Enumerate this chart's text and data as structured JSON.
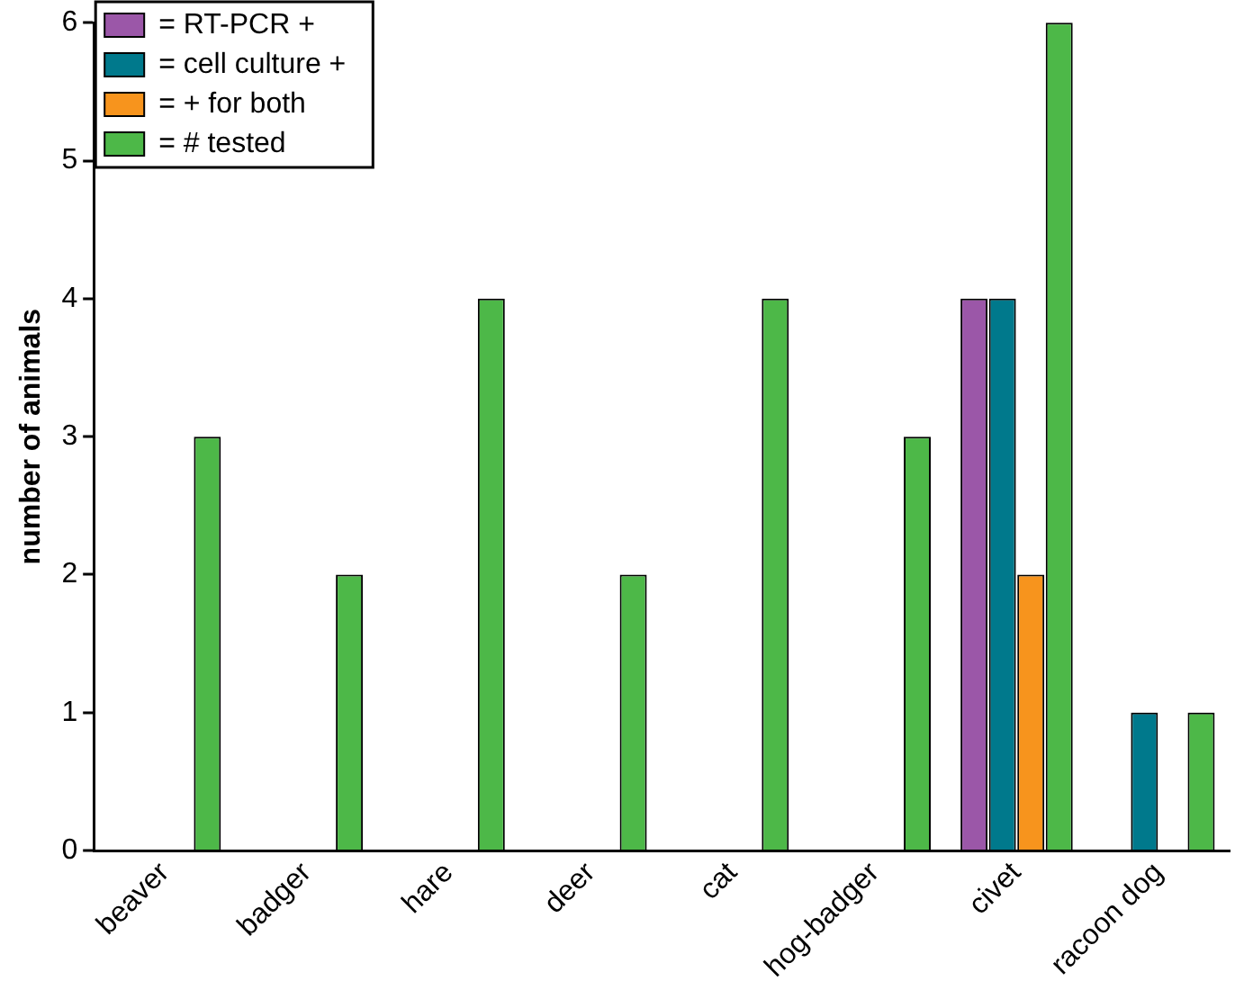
{
  "chart_data": {
    "type": "bar",
    "ylabel": "number of animals",
    "categories": [
      "beaver",
      "badger",
      "hare",
      "deer",
      "cat",
      "hog-badger",
      "civet",
      "racoon dog"
    ],
    "series": [
      {
        "name": "= RT-PCR +",
        "color": "#9b57a8",
        "values": [
          null,
          null,
          null,
          null,
          null,
          null,
          4,
          null
        ]
      },
      {
        "name": "= cell culture +",
        "color": "#00798c",
        "values": [
          null,
          null,
          null,
          null,
          null,
          null,
          4,
          1
        ]
      },
      {
        "name": "= + for both",
        "color": "#f7941d",
        "values": [
          null,
          null,
          null,
          null,
          null,
          null,
          2,
          null
        ]
      },
      {
        "name": "= # tested",
        "color": "#4db848",
        "values": [
          3,
          2,
          4,
          2,
          4,
          3,
          6,
          1
        ]
      }
    ],
    "ylim": [
      0,
      6
    ],
    "yticks": [
      0,
      1,
      2,
      3,
      4,
      5,
      6
    ],
    "grid": false,
    "legend": "top left"
  }
}
